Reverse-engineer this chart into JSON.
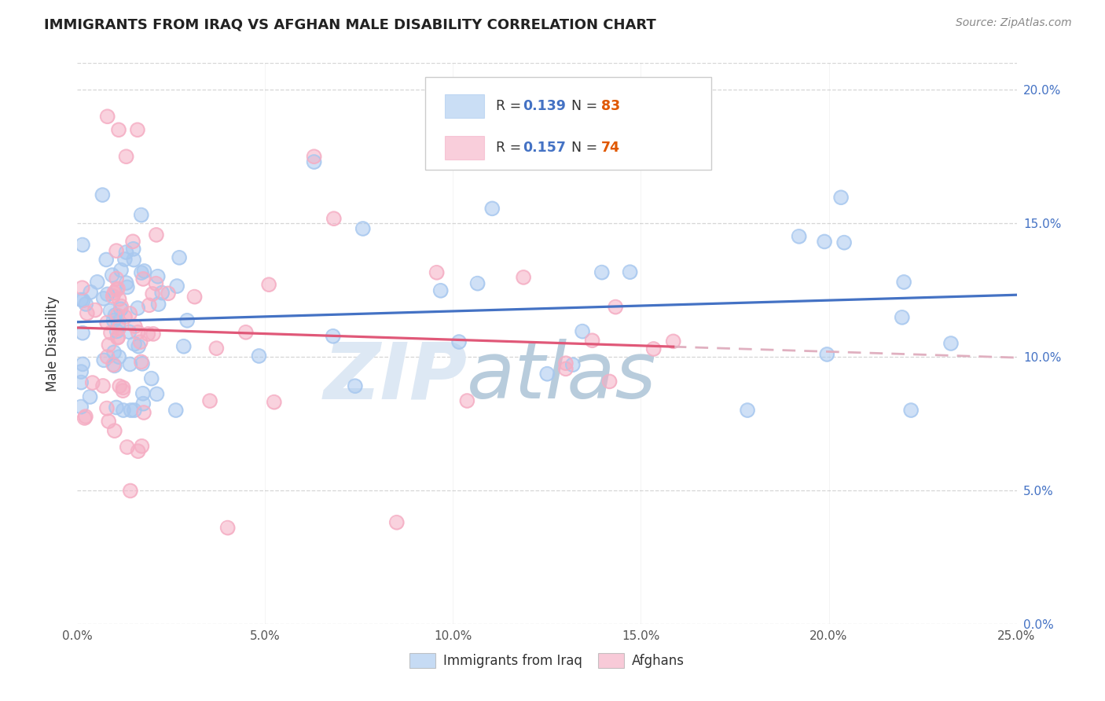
{
  "title": "IMMIGRANTS FROM IRAQ VS AFGHAN MALE DISABILITY CORRELATION CHART",
  "source": "Source: ZipAtlas.com",
  "ylabel": "Male Disability",
  "background_color": "#ffffff",
  "grid_color": "#cccccc",
  "title_color": "#222222",
  "source_color": "#888888",
  "watermark_color": "#cfdff0",
  "iraq_scatter_color": "#a8c8ef",
  "afghan_scatter_color": "#f5aec4",
  "iraq_line_color": "#4472c4",
  "afghan_line_color": "#e05878",
  "afghan_dashed_color": "#e0b0c0",
  "iraq_R": "0.139",
  "iraq_N": "83",
  "afghan_R": "0.157",
  "afghan_N": "74",
  "xlim": [
    0.0,
    0.25
  ],
  "ylim": [
    0.0,
    0.21
  ],
  "xtick_vals": [
    0.0,
    0.05,
    0.1,
    0.15,
    0.2,
    0.25
  ],
  "ytick_vals": [
    0.0,
    0.05,
    0.1,
    0.15,
    0.2
  ],
  "legend_text_color": "#4472c4",
  "legend_N_color": "#e05800",
  "n_iraq": 83,
  "n_afghan": 74
}
